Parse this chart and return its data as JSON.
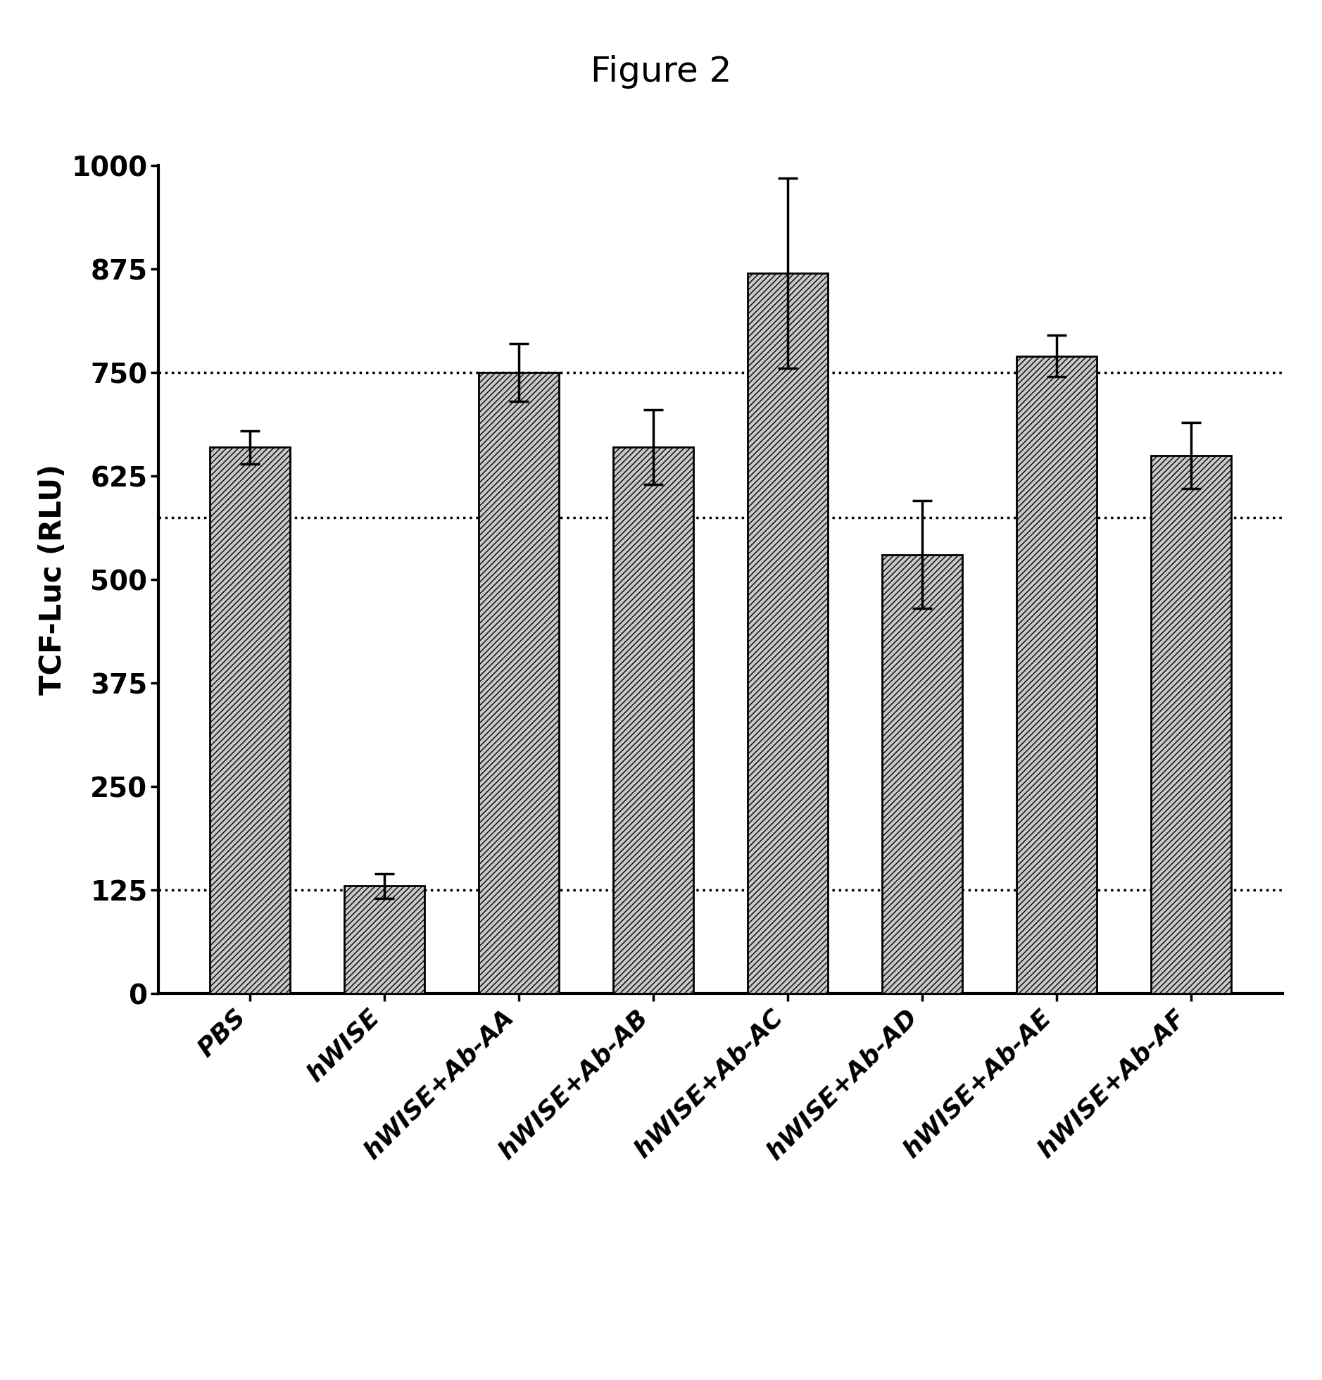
{
  "title": "Figure 2",
  "ylabel": "TCF-Luc (RLU)",
  "categories": [
    "PBS",
    "hWISE",
    "hWISE+Ab-AA",
    "hWISE+Ab-AB",
    "hWISE+Ab-AC",
    "hWISE+Ab-AD",
    "hWISE+Ab-AE",
    "hWISE+Ab-AF"
  ],
  "values": [
    660,
    130,
    750,
    660,
    870,
    530,
    770,
    650
  ],
  "errors": [
    20,
    15,
    35,
    45,
    115,
    65,
    25,
    40
  ],
  "ylim": [
    0,
    1000
  ],
  "yticks": [
    0,
    125,
    250,
    375,
    500,
    625,
    750,
    875,
    1000
  ],
  "hlines": [
    125,
    575,
    750
  ],
  "bar_color": "#c8c8c8",
  "hatch": "////",
  "background_color": "#ffffff",
  "title_fontsize": 36,
  "axis_fontsize": 30,
  "tick_fontsize": 28,
  "label_fontsize": 26
}
